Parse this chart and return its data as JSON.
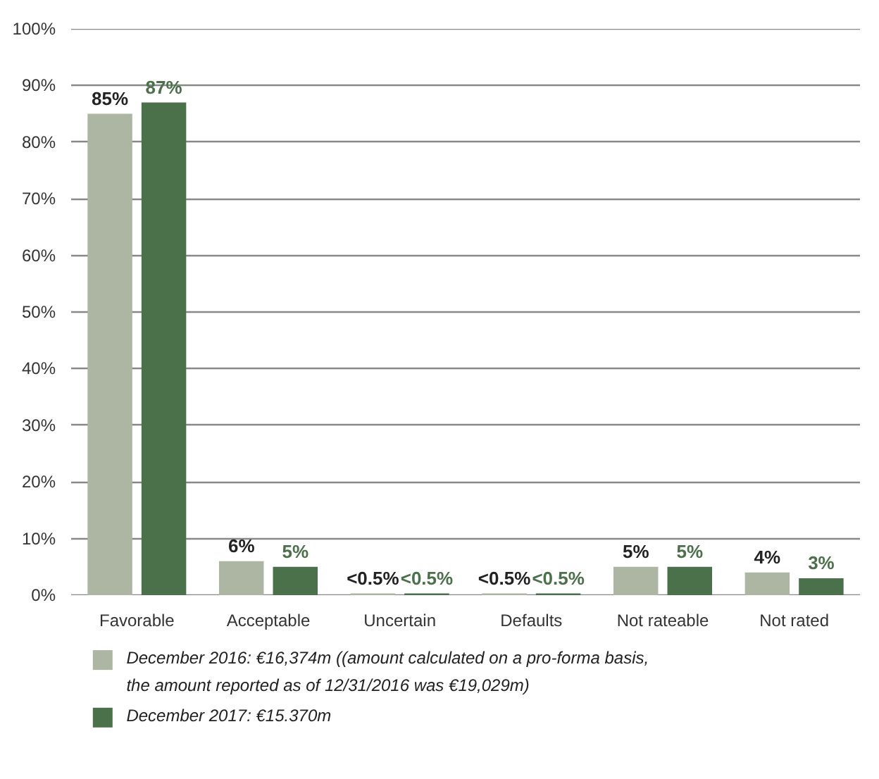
{
  "chart_data": {
    "type": "bar",
    "categories": [
      "Favorable",
      "Acceptable",
      "Uncertain",
      "Defaults",
      "Not rateable",
      "Not rated"
    ],
    "series": [
      {
        "name": "December 2016: €16,374m ((amount calculated on a pro-forma basis,\nthe amount reported as of 12/31/2016 was €19,029m)",
        "color": "#adb5a3",
        "values": [
          85,
          6,
          0.3,
          0.3,
          5,
          4
        ],
        "value_labels": [
          "85%",
          "6%",
          "<0.5%",
          "<0.5%",
          "5%",
          "4%"
        ]
      },
      {
        "name": "December 2017: €15.370m",
        "color": "#4a714a",
        "values": [
          87,
          5,
          0.3,
          0.3,
          5,
          3
        ],
        "value_labels": [
          "87%",
          "5%",
          "<0.5%",
          "<0.5%",
          "5%",
          "3%"
        ]
      }
    ],
    "ylim": [
      0,
      100
    ],
    "yticks": [
      {
        "value": 0,
        "label": "0%"
      },
      {
        "value": 10,
        "label": "10%"
      },
      {
        "value": 20,
        "label": "20%"
      },
      {
        "value": 30,
        "label": "30%"
      },
      {
        "value": 40,
        "label": "40%"
      },
      {
        "value": 50,
        "label": "50%"
      },
      {
        "value": 60,
        "label": "60%"
      },
      {
        "value": 70,
        "label": "70%"
      },
      {
        "value": 80,
        "label": "80%"
      },
      {
        "value": 90,
        "label": "90%"
      },
      {
        "value": 100,
        "label": "100%"
      }
    ],
    "grid": "y",
    "legend": "bottom"
  }
}
